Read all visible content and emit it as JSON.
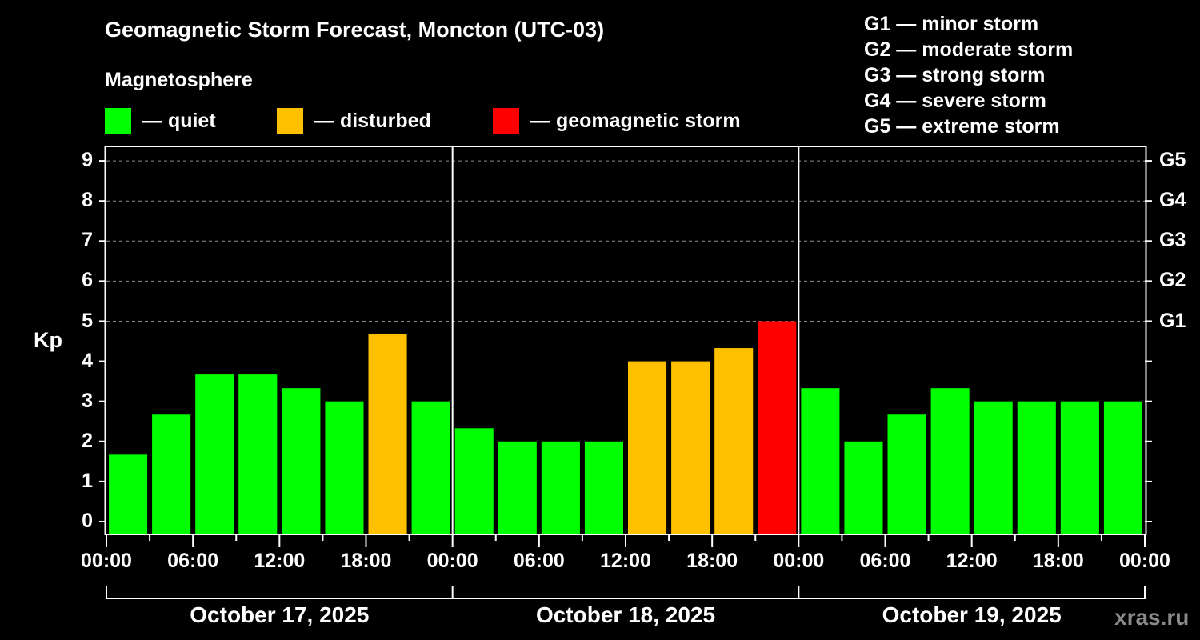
{
  "chart_data": {
    "type": "bar",
    "title": "Geomagnetic Storm Forecast, Moncton (UTC-03)",
    "subtitle": "Magnetosphere",
    "xlabel": "",
    "ylabel": "Kp",
    "ylim": [
      0,
      9
    ],
    "yticks": [
      0,
      1,
      2,
      3,
      4,
      5,
      6,
      7,
      8,
      9
    ],
    "right_axis_ticks": [
      {
        "kp": 5,
        "label": "G1"
      },
      {
        "kp": 6,
        "label": "G2"
      },
      {
        "kp": 7,
        "label": "G3"
      },
      {
        "kp": 8,
        "label": "G4"
      },
      {
        "kp": 9,
        "label": "G5"
      }
    ],
    "grid": "dashed horizontal at Kp 5-9",
    "interval_hours": 3,
    "x_tick_labels": [
      "00:00",
      "06:00",
      "12:00",
      "18:00",
      "00:00",
      "06:00",
      "12:00",
      "18:00",
      "00:00",
      "06:00",
      "12:00",
      "18:00",
      "00:00"
    ],
    "days": [
      "October 17, 2025",
      "October 18, 2025",
      "October 19, 2025"
    ],
    "categories": [
      "Oct 17 00-03",
      "Oct 17 03-06",
      "Oct 17 06-09",
      "Oct 17 09-12",
      "Oct 17 12-15",
      "Oct 17 15-18",
      "Oct 17 18-21",
      "Oct 17 21-24",
      "Oct 18 00-03",
      "Oct 18 03-06",
      "Oct 18 06-09",
      "Oct 18 09-12",
      "Oct 18 12-15",
      "Oct 18 15-18",
      "Oct 18 18-21",
      "Oct 18 21-24",
      "Oct 19 00-03",
      "Oct 19 03-06",
      "Oct 19 06-09",
      "Oct 19 09-12",
      "Oct 19 12-15",
      "Oct 19 15-18",
      "Oct 19 18-21",
      "Oct 19 21-24"
    ],
    "values": [
      1.67,
      2.67,
      3.67,
      3.67,
      3.33,
      3.0,
      4.67,
      3.0,
      2.33,
      2.0,
      2.0,
      2.0,
      4.0,
      4.0,
      4.33,
      5.0,
      3.33,
      2.0,
      2.67,
      3.33,
      3.0,
      3.0,
      3.0,
      3.0
    ],
    "status": [
      "quiet",
      "quiet",
      "quiet",
      "quiet",
      "quiet",
      "quiet",
      "disturbed",
      "quiet",
      "quiet",
      "quiet",
      "quiet",
      "quiet",
      "disturbed",
      "disturbed",
      "disturbed",
      "storm",
      "quiet",
      "quiet",
      "quiet",
      "quiet",
      "quiet",
      "quiet",
      "quiet",
      "quiet"
    ],
    "legend": [
      {
        "label": "— quiet",
        "color": "#00ff00"
      },
      {
        "label": "— disturbed",
        "color": "#ffc000"
      },
      {
        "label": "— geomagnetic storm",
        "color": "#ff0000"
      }
    ],
    "storm_scale": [
      "G1 — minor storm",
      "G2 — moderate storm",
      "G3 — strong storm",
      "G4 — severe storm",
      "G5 — extreme storm"
    ]
  },
  "colors": {
    "quiet": "#00ff00",
    "disturbed": "#ffc000",
    "storm": "#ff0000",
    "background": "#000000",
    "grid": "#8c8c8c"
  },
  "watermark": "xras.ru"
}
